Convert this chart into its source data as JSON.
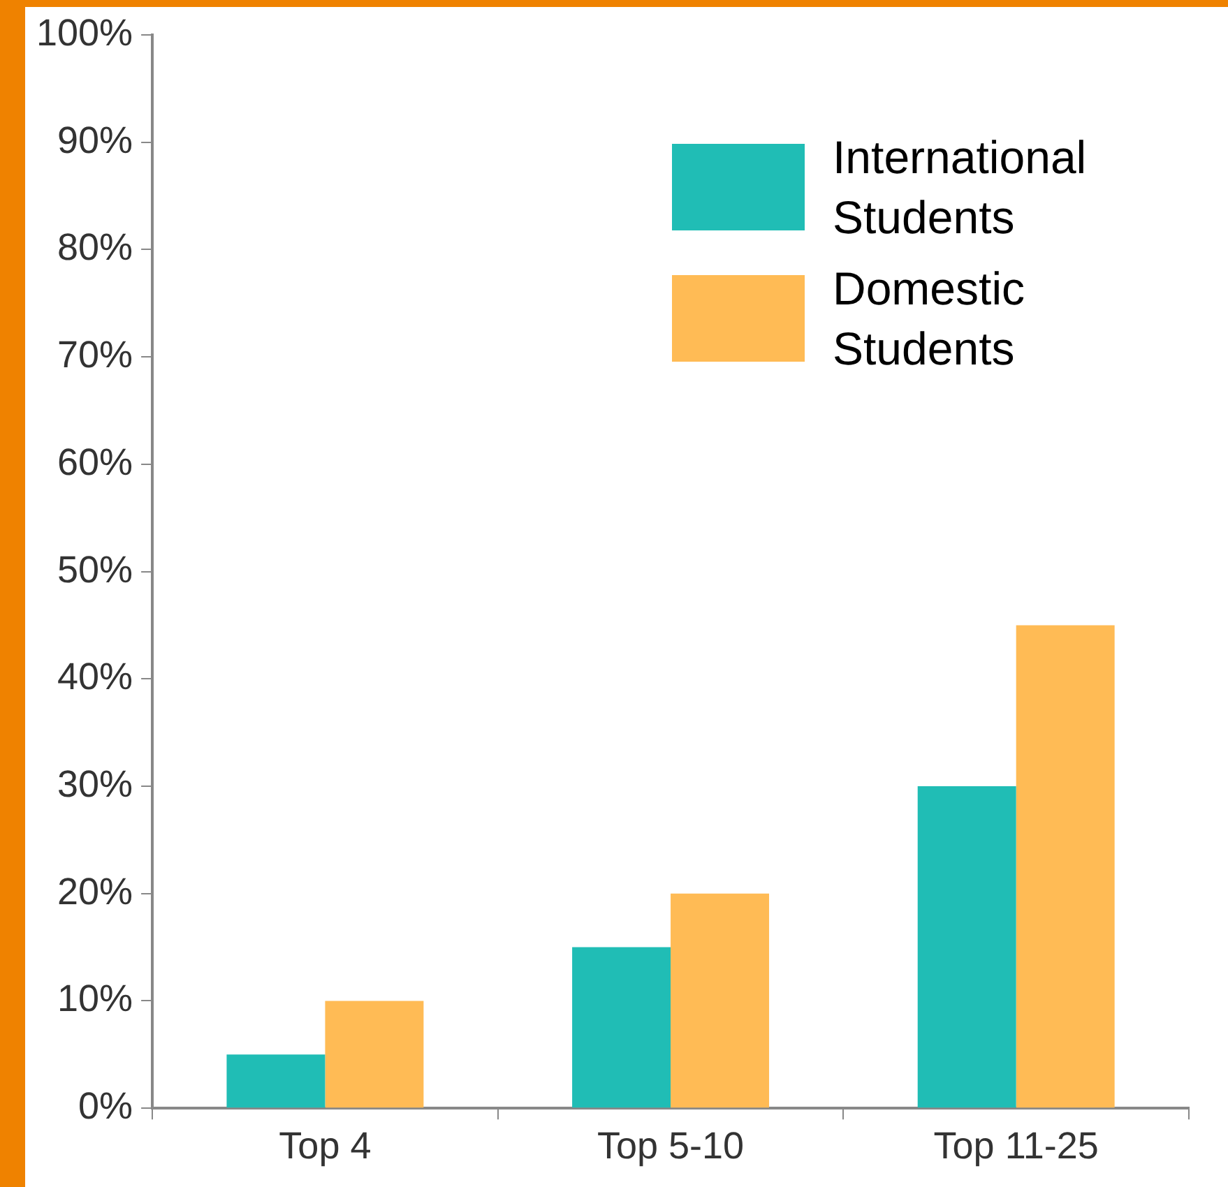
{
  "chart_data": {
    "type": "bar",
    "categories": [
      "Top 4",
      "Top 5-10",
      "Top 11-25"
    ],
    "series": [
      {
        "name": "International Students",
        "color": "#20bdb5",
        "values": [
          5,
          15,
          30
        ]
      },
      {
        "name": "Domestic Students",
        "color": "#ffbb55",
        "values": [
          10,
          20,
          45
        ]
      }
    ],
    "ylim": [
      0,
      100
    ],
    "yticks": [
      {
        "value": 0,
        "label": "0%"
      },
      {
        "value": 10,
        "label": "10%"
      },
      {
        "value": 20,
        "label": "20%"
      },
      {
        "value": 30,
        "label": "30%"
      },
      {
        "value": 40,
        "label": "40%"
      },
      {
        "value": 50,
        "label": "50%"
      },
      {
        "value": 60,
        "label": "60%"
      },
      {
        "value": 70,
        "label": "70%"
      },
      {
        "value": 80,
        "label": "80%"
      },
      {
        "value": 90,
        "label": "90%"
      },
      {
        "value": 100,
        "label": "100%"
      }
    ],
    "grid": false,
    "legend": "top right"
  }
}
